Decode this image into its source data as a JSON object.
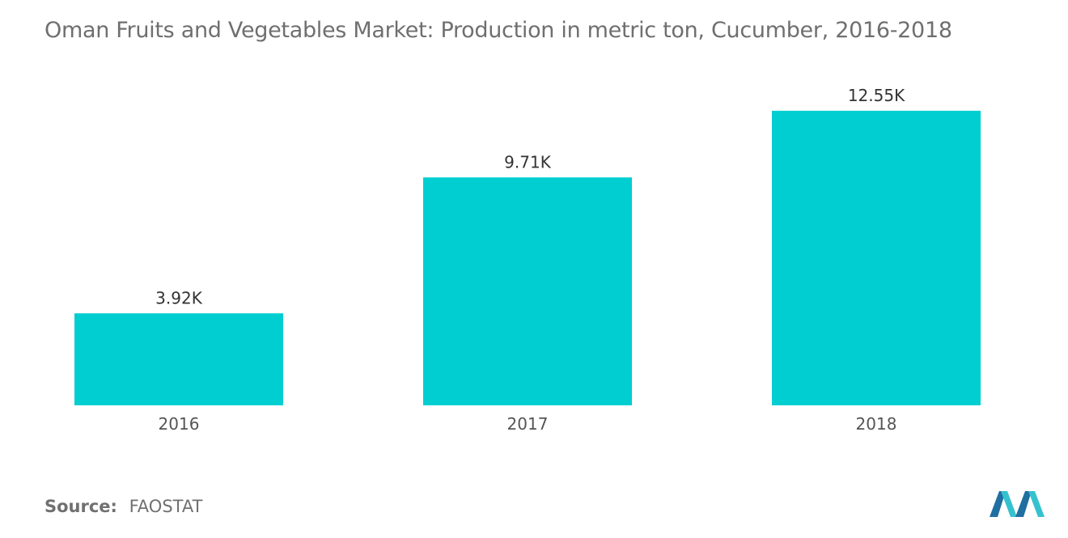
{
  "chart_data": {
    "type": "bar",
    "title": "Oman Fruits and Vegetables  Market: Production in metric ton, Cucumber, 2016-2018",
    "categories": [
      "2016",
      "2017",
      "2018"
    ],
    "values": [
      3.92,
      9.71,
      12.55
    ],
    "value_labels": [
      "3.92K",
      "9.71K",
      "12.55K"
    ],
    "unit": "K",
    "ylim": [
      0,
      15.2
    ],
    "grid": false,
    "bar_color": "#00ced1"
  },
  "source": {
    "label": "Source:",
    "value": "FAOSTAT"
  },
  "colors": {
    "title": "#6f6f6f",
    "tick_text": "#555555",
    "logo_primary": "#1f6fa0",
    "logo_accent": "#35c2cf"
  }
}
